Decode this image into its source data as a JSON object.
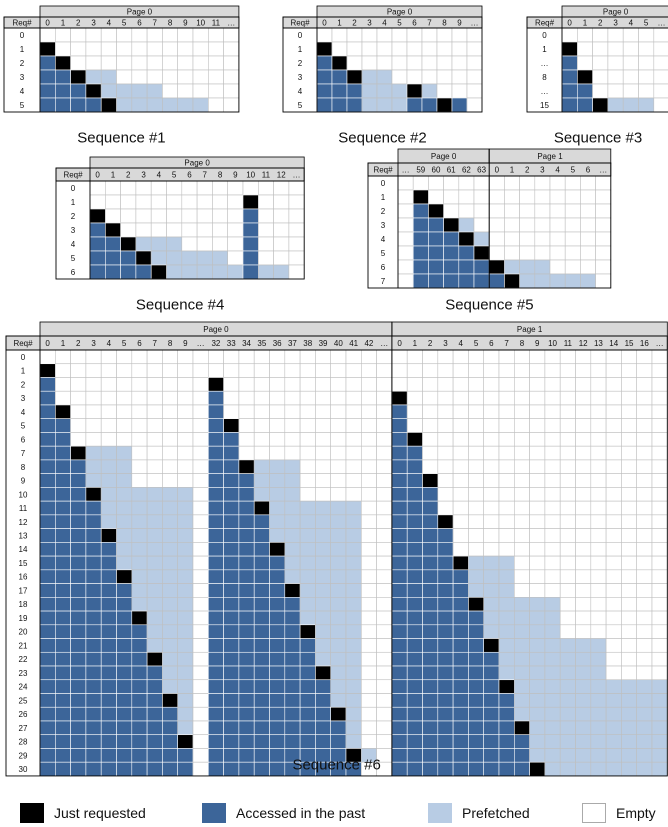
{
  "colors": {
    "just_requested": "#000000",
    "accessed": "#3c6599",
    "prefetched": "#b8cce4",
    "empty": "#ffffff",
    "grid": "#bfbfbf",
    "header_bg": "#d9d9d9",
    "border": "#000000"
  },
  "legend": [
    {
      "key": "J",
      "label": "Just requested"
    },
    {
      "key": "A",
      "label": "Accessed in the past"
    },
    {
      "key": "P",
      "label": "Prefetched"
    },
    {
      "key": "E",
      "label": "Empty"
    }
  ],
  "sequences": [
    {
      "title": "Sequence #1",
      "row_header": "Req#",
      "pages": [
        {
          "label": "Page 0",
          "cols": [
            "0",
            "1",
            "2",
            "3",
            "4",
            "5",
            "6",
            "7",
            "8",
            "9",
            "10",
            "11",
            "…"
          ]
        }
      ],
      "rows": [
        {
          "label": "0",
          "cells": ""
        },
        {
          "label": "1",
          "cells": "J"
        },
        {
          "label": "2",
          "cells": "AJ"
        },
        {
          "label": "3",
          "cells": "AAJPP"
        },
        {
          "label": "4",
          "cells": "AAAJPPPP"
        },
        {
          "label": "5",
          "cells": "AAAAJPPPPPP"
        }
      ]
    },
    {
      "title": "Sequence #2",
      "row_header": "Req#",
      "pages": [
        {
          "label": "Page 0",
          "cols": [
            "0",
            "1",
            "2",
            "3",
            "4",
            "5",
            "6",
            "7",
            "8",
            "9",
            "…"
          ]
        }
      ],
      "rows": [
        {
          "label": "0",
          "cells": ""
        },
        {
          "label": "1",
          "cells": "J"
        },
        {
          "label": "2",
          "cells": "AJ"
        },
        {
          "label": "3",
          "cells": "AAJPP"
        },
        {
          "label": "4",
          "cells": "AAAPPPJP"
        },
        {
          "label": "5",
          "cells": "AAAPPPAAJA"
        }
      ]
    },
    {
      "title": "Sequence #3",
      "row_header": "Req#",
      "pages": [
        {
          "label": "Page 0",
          "cols": [
            "0",
            "1",
            "2",
            "3",
            "4",
            "5",
            "…"
          ]
        }
      ],
      "rows": [
        {
          "label": "0",
          "cells": ""
        },
        {
          "label": "1",
          "cells": "J"
        },
        {
          "label": "…",
          "cells": "A"
        },
        {
          "label": "8",
          "cells": "AJ"
        },
        {
          "label": "…",
          "cells": "AA"
        },
        {
          "label": "15",
          "cells": "AAJPPP"
        }
      ]
    },
    {
      "title": "Sequence #4",
      "row_header": "Req#",
      "pages": [
        {
          "label": "Page 0",
          "cols": [
            "0",
            "1",
            "2",
            "3",
            "4",
            "5",
            "6",
            "7",
            "8",
            "9",
            "10",
            "11",
            "12",
            "…"
          ]
        }
      ],
      "rows": [
        {
          "label": "0",
          "cells": ""
        },
        {
          "label": "1",
          "cells": "__________J"
        },
        {
          "label": "2",
          "cells": "J_________A"
        },
        {
          "label": "3",
          "cells": "AJ________A"
        },
        {
          "label": "4",
          "cells": "AAJPPP____A"
        },
        {
          "label": "5",
          "cells": "AAAJPPPPP_A"
        },
        {
          "label": "6",
          "cells": "AAAAJPPPPPAPP"
        }
      ]
    },
    {
      "title": "Sequence #5",
      "row_header": "Req#",
      "pages": [
        {
          "label": "Page 0",
          "cols": [
            "…",
            "59",
            "60",
            "61",
            "62",
            "63"
          ]
        },
        {
          "label": "Page 1",
          "cols": [
            "0",
            "1",
            "2",
            "3",
            "4",
            "5",
            "6",
            "…"
          ]
        }
      ],
      "rows": [
        {
          "label": "0",
          "cells": ""
        },
        {
          "label": "1",
          "cells": "_J"
        },
        {
          "label": "2",
          "cells": "_AJ"
        },
        {
          "label": "3",
          "cells": "_AAJP"
        },
        {
          "label": "4",
          "cells": "_AAAJP"
        },
        {
          "label": "5",
          "cells": "_AAAAJ"
        },
        {
          "label": "6",
          "cells": "_AAAAAJPPP"
        },
        {
          "label": "7",
          "cells": "_AAAAAAJPPPPP"
        }
      ]
    },
    {
      "title": "Sequence #6",
      "row_header": "Req#",
      "pages": [
        {
          "label": "Page 0",
          "cols": [
            "0",
            "1",
            "2",
            "3",
            "4",
            "5",
            "6",
            "7",
            "8",
            "9",
            "…",
            "32",
            "33",
            "34",
            "35",
            "36",
            "37",
            "38",
            "39",
            "40",
            "41",
            "42",
            "…"
          ]
        },
        {
          "label": "Page 1",
          "cols": [
            "0",
            "1",
            "2",
            "3",
            "4",
            "5",
            "6",
            "7",
            "8",
            "9",
            "10",
            "11",
            "12",
            "13",
            "14",
            "15",
            "16",
            "…"
          ]
        }
      ],
      "rows": [
        {
          "label": "0",
          "cells": ""
        },
        {
          "label": "1",
          "cells": "J"
        },
        {
          "label": "2",
          "cells": "A__________J"
        },
        {
          "label": "3",
          "cells": "A__________A___________J"
        },
        {
          "label": "4",
          "cells": "AJ_________A___________A"
        },
        {
          "label": "5",
          "cells": "AA_________AJ__________A"
        },
        {
          "label": "6",
          "cells": "AA_________AA__________AJ"
        },
        {
          "label": "7",
          "cells": "AAJPPP_____AA__________AA"
        },
        {
          "label": "8",
          "cells": "AAAPPP_____AAJPPP______AA"
        },
        {
          "label": "9",
          "cells": "AAAPPP_____AAAPPP______AAJ"
        },
        {
          "label": "10",
          "cells": "AAAJPPPPPP_AAAPPP______AAA"
        },
        {
          "label": "11",
          "cells": "AAAAPPPPPP_AAAJPPPPPP__AAA"
        },
        {
          "label": "12",
          "cells": "AAAAPPPPPP_AAAAPPPPPP__AAAJ"
        },
        {
          "label": "13",
          "cells": "AAAAJPPPPP_AAAAPPPPPP__AAAA"
        },
        {
          "label": "14",
          "cells": "AAAAAPPPPP_AAAAJPPPPP__AAAA"
        },
        {
          "label": "15",
          "cells": "AAAAAPPPPP_AAAAAPPPPP__AAAAJPPP"
        },
        {
          "label": "16",
          "cells": "AAAAAJPPPP_AAAAAPPPPP__AAAAAPPP"
        },
        {
          "label": "17",
          "cells": "AAAAAAPPPP_AAAAAJPPPP__AAAAAPPP"
        },
        {
          "label": "18",
          "cells": "AAAAAAPPPP_AAAAAAPPPP__AAAAAJPPPPP"
        },
        {
          "label": "19",
          "cells": "AAAAAAJPPP_AAAAAAPPPP__AAAAAAPPPPP"
        },
        {
          "label": "20",
          "cells": "AAAAAAAPPP_AAAAAAJPPP__AAAAAAPPPPP"
        },
        {
          "label": "21",
          "cells": "AAAAAAAPPP_AAAAAAAPPP__AAAAAAJPPPPPPP"
        },
        {
          "label": "22",
          "cells": "AAAAAAAJPP_AAAAAAAPPP__AAAAAAAPPPPPPP"
        },
        {
          "label": "23",
          "cells": "AAAAAAAAPP_AAAAAAAJPP__AAAAAAAPPPPPPP"
        },
        {
          "label": "24",
          "cells": "AAAAAAAAPP_AAAAAAAAPP__AAAAAAAJPPPPPPPPPP"
        },
        {
          "label": "25",
          "cells": "AAAAAAAAJP_AAAAAAAAPP__AAAAAAAAPPPPPPPPPP"
        },
        {
          "label": "26",
          "cells": "AAAAAAAAAP_AAAAAAAAJP__AAAAAAAAPPPPPPPPPP"
        },
        {
          "label": "27",
          "cells": "AAAAAAAAAP_AAAAAAAAAP__AAAAAAAAJPPPPPPPPP"
        },
        {
          "label": "28",
          "cells": "AAAAAAAAAJ_AAAAAAAAAP__AAAAAAAAAPPPPPPPPP"
        },
        {
          "label": "29",
          "cells": "AAAAAAAAAA_AAAAAAAAAJP_AAAAAAAAAPPPPPPPPP"
        },
        {
          "label": "30",
          "cells": "AAAAAAAAAA_AAAAAAAAAA__AAAAAAAAAJPPPPPPPP"
        }
      ]
    }
  ]
}
